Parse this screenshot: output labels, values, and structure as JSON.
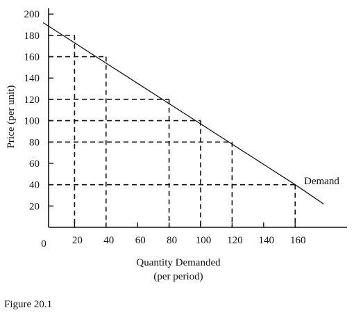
{
  "chart_data": {
    "type": "line",
    "title": "",
    "caption": "Figure 20.1",
    "xlabel": "Quantity Demanded",
    "xlabel_sub": "(per period)",
    "ylabel": "Price (per unit)",
    "xlim": [
      0,
      180
    ],
    "ylim": [
      0,
      200
    ],
    "x_ticks": [
      20,
      40,
      60,
      80,
      100,
      120,
      140,
      160
    ],
    "y_ticks": [
      20,
      40,
      60,
      80,
      100,
      120,
      140,
      160,
      180,
      200
    ],
    "origin_label": "0",
    "grid": false,
    "series": [
      {
        "name": "Demand",
        "x": [
          0,
          160,
          178
        ],
        "y": [
          192,
          40,
          22
        ],
        "style": "solid"
      }
    ],
    "reference_points": [
      {
        "x": 20,
        "y": 180
      },
      {
        "x": 40,
        "y": 160
      },
      {
        "x": 80,
        "y": 120
      },
      {
        "x": 100,
        "y": 100
      },
      {
        "x": 120,
        "y": 80
      },
      {
        "x": 160,
        "y": 40
      }
    ],
    "reference_line_style": "dashed",
    "colors": {
      "ink": "#111111",
      "background": "#ffffff"
    }
  }
}
